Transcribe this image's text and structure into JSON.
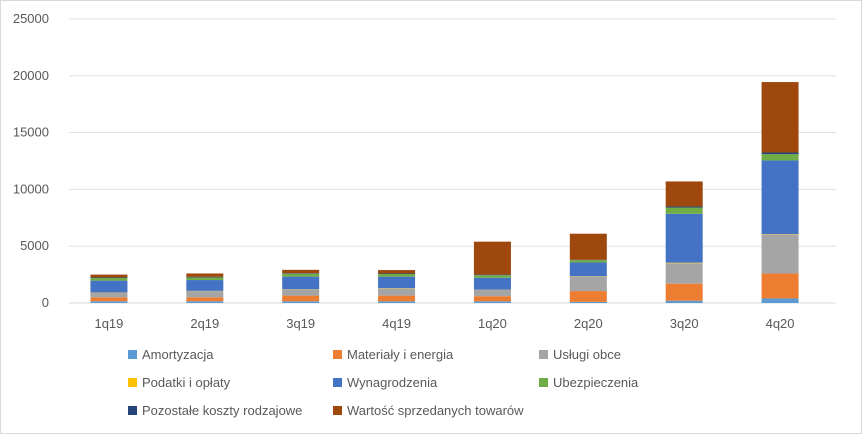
{
  "chart_data": {
    "type": "bar",
    "stacked": true,
    "categories": [
      "1q19",
      "2q19",
      "3q19",
      "4q19",
      "1q20",
      "2q20",
      "3q20",
      "4q20"
    ],
    "ylim": [
      0,
      25000
    ],
    "yticks": [
      "0",
      "5000",
      "10000",
      "15000",
      "20000",
      "25000"
    ],
    "grid": true,
    "legend_position": "bottom",
    "series": [
      {
        "name": "Amortyzacja",
        "color": "#5B9BD5",
        "values": [
          150,
          150,
          150,
          150,
          150,
          100,
          200,
          400
        ]
      },
      {
        "name": "Materiały i energia",
        "color": "#ED7D31",
        "values": [
          350,
          350,
          500,
          500,
          450,
          950,
          1500,
          2200
        ]
      },
      {
        "name": "Usługi obce",
        "color": "#A5A5A5",
        "values": [
          400,
          550,
          550,
          650,
          550,
          1300,
          1800,
          3400
        ]
      },
      {
        "name": "Podatki i opłaty",
        "color": "#FFC000",
        "values": [
          20,
          20,
          20,
          20,
          20,
          20,
          50,
          50
        ]
      },
      {
        "name": "Wynagrodzenia",
        "color": "#4472C4",
        "values": [
          1050,
          950,
          1100,
          1000,
          1050,
          1200,
          4300,
          6500
        ]
      },
      {
        "name": "Ubezpieczenia",
        "color": "#70AD47",
        "values": [
          230,
          230,
          250,
          230,
          230,
          200,
          550,
          550
        ]
      },
      {
        "name": "Pozostałe koszty rodzajowe",
        "color": "#264478",
        "values": [
          50,
          50,
          50,
          50,
          50,
          30,
          100,
          150
        ]
      },
      {
        "name": "Wartość sprzedanych towarów",
        "color": "#9E480E",
        "values": [
          250,
          300,
          300,
          300,
          2900,
          2300,
          2200,
          6200
        ]
      }
    ]
  }
}
